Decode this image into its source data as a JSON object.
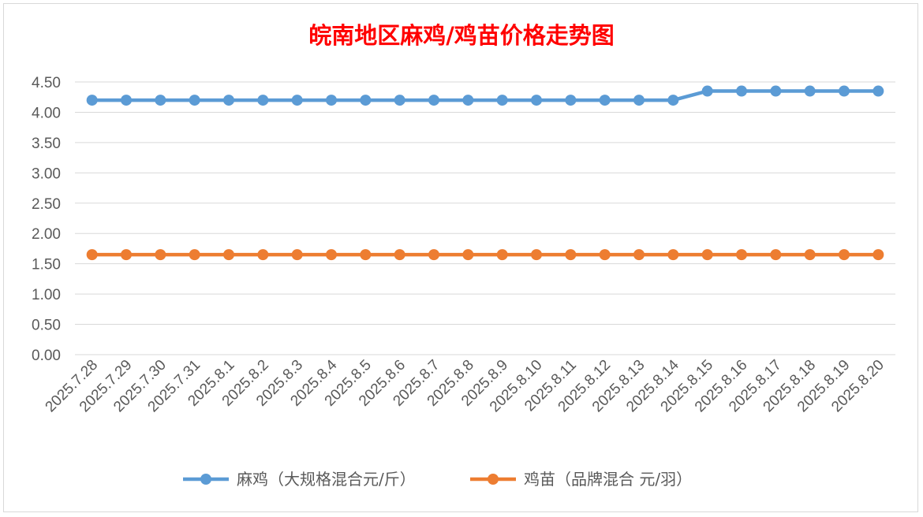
{
  "chart_data": {
    "type": "line",
    "title": "皖南地区麻鸡/鸡苗价格走势图",
    "xlabel": "",
    "ylabel": "",
    "ylim": [
      0,
      4.5
    ],
    "yticks": [
      "0.00",
      "0.50",
      "1.00",
      "1.50",
      "2.00",
      "2.50",
      "3.00",
      "3.50",
      "4.00",
      "4.50"
    ],
    "categories": [
      "2025.7.28",
      "2025.7.29",
      "2025.7.30",
      "2025.7.31",
      "2025.8.1",
      "2025.8.2",
      "2025.8.3",
      "2025.8.4",
      "2025.8.5",
      "2025.8.6",
      "2025.8.7",
      "2025.8.8",
      "2025.8.9",
      "2025.8.10",
      "2025.8.11",
      "2025.8.12",
      "2025.8.13",
      "2025.8.14",
      "2025.8.15",
      "2025.8.16",
      "2025.8.17",
      "2025.8.18",
      "2025.8.19",
      "2025.8.20"
    ],
    "series": [
      {
        "name": "麻鸡（大规格混合元/斤）",
        "color": "#5b9bd5",
        "values": [
          4.2,
          4.2,
          4.2,
          4.2,
          4.2,
          4.2,
          4.2,
          4.2,
          4.2,
          4.2,
          4.2,
          4.2,
          4.2,
          4.2,
          4.2,
          4.2,
          4.2,
          4.2,
          4.35,
          4.35,
          4.35,
          4.35,
          4.35,
          4.35
        ]
      },
      {
        "name": "鸡苗（品牌混合 元/羽）",
        "color": "#ed7d31",
        "values": [
          1.65,
          1.65,
          1.65,
          1.65,
          1.65,
          1.65,
          1.65,
          1.65,
          1.65,
          1.65,
          1.65,
          1.65,
          1.65,
          1.65,
          1.65,
          1.65,
          1.65,
          1.65,
          1.65,
          1.65,
          1.65,
          1.65,
          1.65,
          1.65
        ]
      }
    ],
    "grid": true,
    "legend_position": "bottom"
  }
}
